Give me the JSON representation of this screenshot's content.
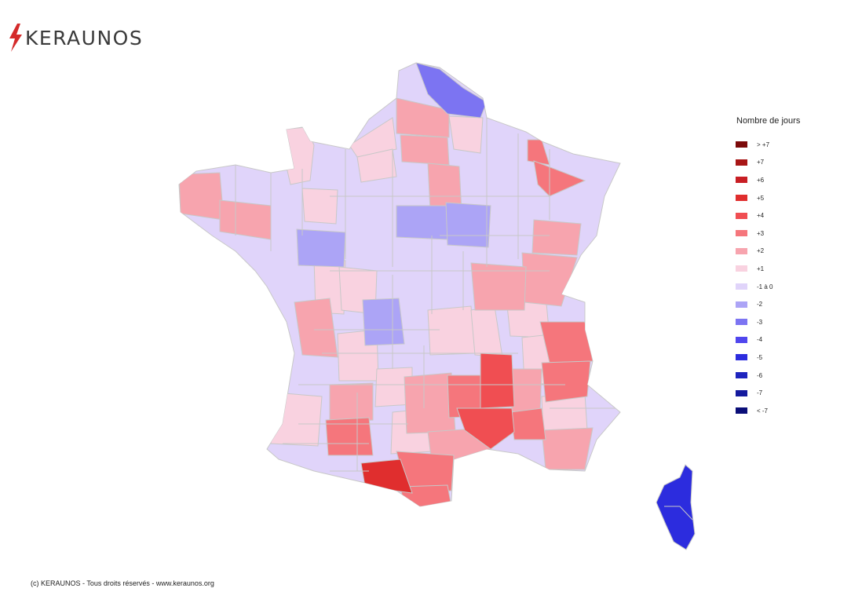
{
  "logo": {
    "text": "KERAUNOS",
    "icon": "lightning-bolt-icon",
    "icon_color": "#d42a2a"
  },
  "legend": {
    "title": "Nombre de jours",
    "items": [
      {
        "label": "> +7",
        "color": "#7c0a0a"
      },
      {
        "label": "+7",
        "color": "#a81616"
      },
      {
        "label": "+6",
        "color": "#c81e24"
      },
      {
        "label": "+5",
        "color": "#e02e2e"
      },
      {
        "label": "+4",
        "color": "#f04e52"
      },
      {
        "label": "+3",
        "color": "#f5767c"
      },
      {
        "label": "+2",
        "color": "#f7a4ae"
      },
      {
        "label": "+1",
        "color": "#f9d2e0"
      },
      {
        "label": "-1 à 0",
        "color": "#e0d4fa"
      },
      {
        "label": "-2",
        "color": "#aca4f6"
      },
      {
        "label": "-3",
        "color": "#7c74f2"
      },
      {
        "label": "-4",
        "color": "#5046ee"
      },
      {
        "label": "-5",
        "color": "#2c2cde"
      },
      {
        "label": "-6",
        "color": "#1e24be"
      },
      {
        "label": "-7",
        "color": "#141a9e"
      },
      {
        "label": "< -7",
        "color": "#0a0e78"
      }
    ]
  },
  "footer": {
    "text": "(c) KERAUNOS - Tous droits réservés - www.keraunos.org"
  },
  "map": {
    "colors": {
      "neutral": "#e0d4fa",
      "plus1": "#f9d2e0",
      "plus2": "#f7a4ae",
      "plus3": "#f5767c",
      "plus4": "#f04e52",
      "plus5": "#e02e2e",
      "minus2": "#aca4f6",
      "minus3": "#7c74f2",
      "minus5": "#2c2cde",
      "border": "#c8c8c8"
    }
  }
}
